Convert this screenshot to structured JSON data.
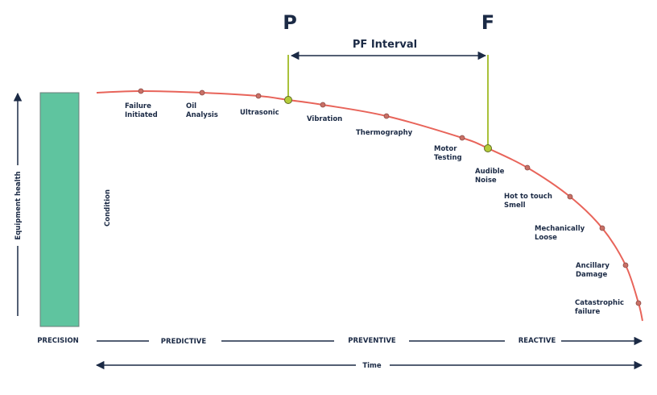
{
  "markers": {
    "p": "P",
    "f": "F",
    "interval": "PF Interval"
  },
  "y_axis": "Equipment health",
  "condition": "Condition",
  "stages": [
    {
      "lines": [
        "Failure",
        "Initiated"
      ]
    },
    {
      "lines": [
        "Oil",
        "Analysis"
      ]
    },
    {
      "lines": [
        "Ultrasonic"
      ]
    },
    {
      "lines": [
        "Vibration"
      ]
    },
    {
      "lines": [
        "Thermography"
      ]
    },
    {
      "lines": [
        "Motor",
        "Testing"
      ]
    },
    {
      "lines": [
        "Audible",
        "Noise"
      ]
    },
    {
      "lines": [
        "Hot to touch",
        "Smell"
      ]
    },
    {
      "lines": [
        "Mechanically",
        "Loose"
      ]
    },
    {
      "lines": [
        "Ancillary",
        "Damage"
      ]
    },
    {
      "lines": [
        "Catastrophic",
        "failure"
      ]
    }
  ],
  "bottom": {
    "precision": "PRECISION",
    "predictive": "PREDICTIVE",
    "preventive": "PREVENTIVE",
    "reactive": "REACTIVE"
  },
  "time": "Time"
}
